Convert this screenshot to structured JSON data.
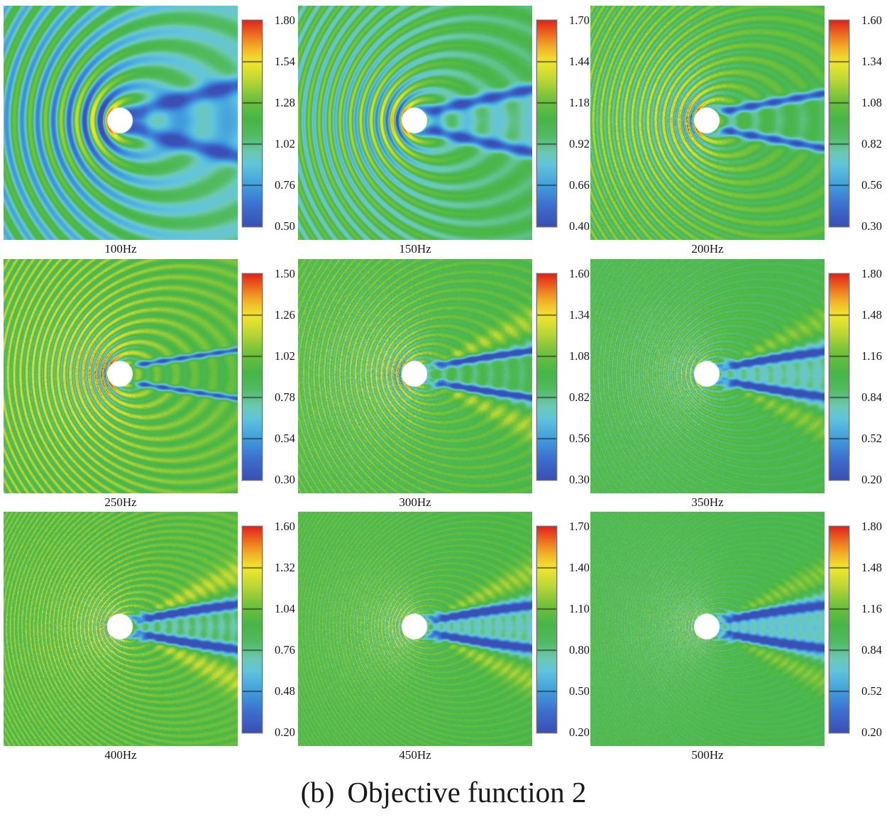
{
  "figure": {
    "caption_index": "(b)",
    "caption_text": "Objective function 2",
    "background": "#ffffff",
    "colormap_stops": [
      [
        0.0,
        "#3a50b5"
      ],
      [
        0.1,
        "#3c6fd0"
      ],
      [
        0.2,
        "#41a0dd"
      ],
      [
        0.3,
        "#62c5dc"
      ],
      [
        0.36,
        "#6cc9b2"
      ],
      [
        0.44,
        "#52bb62"
      ],
      [
        0.52,
        "#47b648"
      ],
      [
        0.62,
        "#72c23c"
      ],
      [
        0.72,
        "#c2d934"
      ],
      [
        0.8,
        "#f1e72e"
      ],
      [
        0.87,
        "#f2b128"
      ],
      [
        0.93,
        "#ee7221"
      ],
      [
        1.0,
        "#e1251d"
      ]
    ]
  },
  "chart_data": {
    "type": "heatmap",
    "title": "(b) Objective function 2",
    "description": "3x3 grid of simulated acoustic pressure-field contour maps around a white circular scatterer, one subplot per excitation frequency. Doppler-compressed wavefronts on the left, twin dark-blue wake jets on the right, rainbow colorbar beside each subplot.",
    "colormap": "rainbow (blue - cyan - green - yellow - orange - red)",
    "grid": "off",
    "legend_position": "colorbar right of each subplot",
    "subplots": [
      {
        "title": "100Hz",
        "freq_hz": 100,
        "colorbar_range": [
          0.5,
          1.8
        ],
        "tick_labels": [
          "1.80",
          "1.54",
          "1.28",
          "1.02",
          "0.76",
          "0.50"
        ]
      },
      {
        "title": "150Hz",
        "freq_hz": 150,
        "colorbar_range": [
          0.4,
          1.7
        ],
        "tick_labels": [
          "1.70",
          "1.44",
          "1.18",
          "0.92",
          "0.66",
          "0.40"
        ]
      },
      {
        "title": "200Hz",
        "freq_hz": 200,
        "colorbar_range": [
          0.3,
          1.6
        ],
        "tick_labels": [
          "1.60",
          "1.34",
          "1.08",
          "0.82",
          "0.56",
          "0.30"
        ]
      },
      {
        "title": "250Hz",
        "freq_hz": 250,
        "colorbar_range": [
          0.3,
          1.5
        ],
        "tick_labels": [
          "1.50",
          "1.26",
          "1.02",
          "0.78",
          "0.54",
          "0.30"
        ]
      },
      {
        "title": "300Hz",
        "freq_hz": 300,
        "colorbar_range": [
          0.3,
          1.6
        ],
        "tick_labels": [
          "1.60",
          "1.34",
          "1.08",
          "0.82",
          "0.56",
          "0.30"
        ]
      },
      {
        "title": "350Hz",
        "freq_hz": 350,
        "colorbar_range": [
          0.2,
          1.8
        ],
        "tick_labels": [
          "1.80",
          "1.48",
          "1.16",
          "0.84",
          "0.52",
          "0.20"
        ]
      },
      {
        "title": "400Hz",
        "freq_hz": 400,
        "colorbar_range": [
          0.2,
          1.6
        ],
        "tick_labels": [
          "1.60",
          "1.32",
          "1.04",
          "0.76",
          "0.48",
          "0.20"
        ]
      },
      {
        "title": "450Hz",
        "freq_hz": 450,
        "colorbar_range": [
          0.2,
          1.7
        ],
        "tick_labels": [
          "1.70",
          "1.40",
          "1.10",
          "0.80",
          "0.50",
          "0.20"
        ]
      },
      {
        "title": "500Hz",
        "freq_hz": 500,
        "colorbar_range": [
          0.2,
          1.8
        ],
        "tick_labels": [
          "1.80",
          "1.48",
          "1.16",
          "0.84",
          "0.52",
          "0.20"
        ]
      }
    ]
  }
}
